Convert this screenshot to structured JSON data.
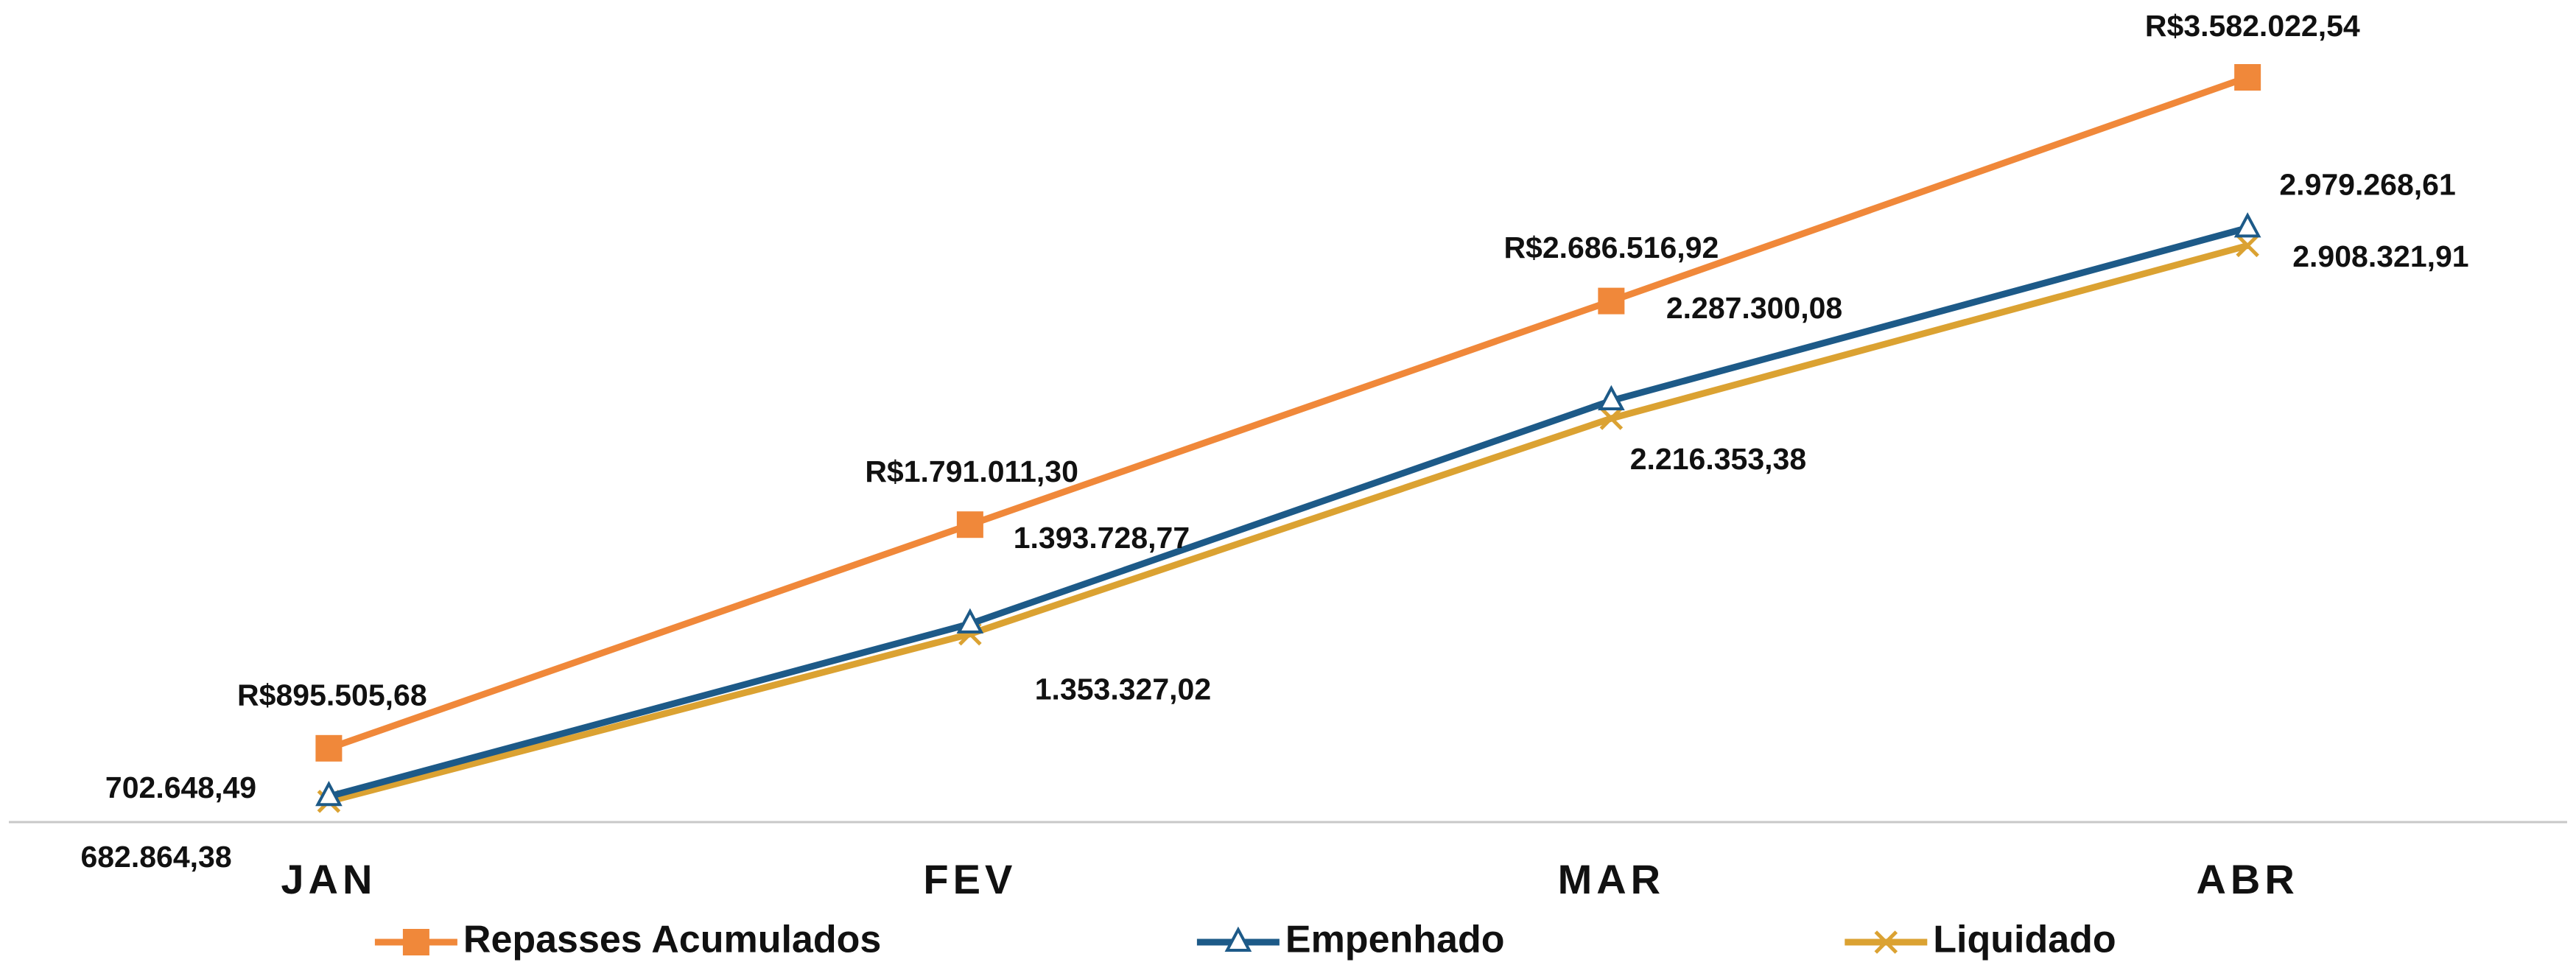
{
  "chart_data": {
    "type": "line",
    "categories": [
      "JAN",
      "FEV",
      "MAR",
      "ABR"
    ],
    "ylim": [
      600000,
      3700000
    ],
    "legend": "bottom",
    "series": [
      {
        "name": "Repasses Acumulados",
        "color": "#f0883a",
        "marker": "square",
        "values": [
          895505.68,
          1791011.3,
          2686516.92,
          3582022.54
        ],
        "value_labels": [
          "R$895.505,68",
          "R$1.791.011,30",
          "R$2.686.516,92",
          "R$3.582.022,54"
        ]
      },
      {
        "name": "Empenhado",
        "color": "#1d5a88",
        "marker": "triangle",
        "values": [
          702648.49,
          1393728.77,
          2287300.08,
          2979268.61
        ],
        "value_labels": [
          "702.648,49",
          "1.393.728,77",
          "2.287.300,08",
          "2.979.268,61"
        ]
      },
      {
        "name": "Liquidado",
        "color": "#dba232",
        "marker": "x",
        "values": [
          682864.38,
          1353327.02,
          2216353.38,
          2908321.91
        ],
        "value_labels": [
          "682.864,38",
          "1.353.327,02",
          "2.216.353,38",
          "2.908.321,91"
        ]
      }
    ]
  }
}
